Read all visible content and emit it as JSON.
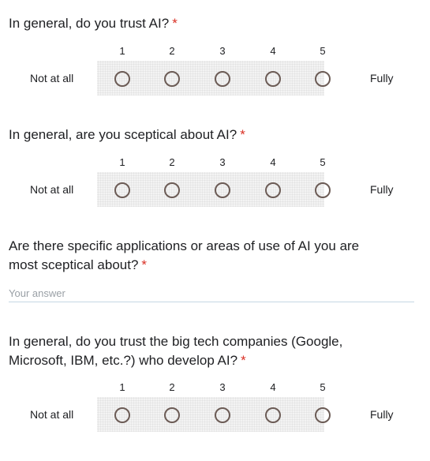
{
  "questions": [
    {
      "title": "In general, do you trust AI?",
      "required": "*",
      "scale": [
        "1",
        "2",
        "3",
        "4",
        "5"
      ],
      "low_label": "Not at all",
      "high_label": "Fully"
    },
    {
      "title": "In general, are you sceptical about AI?",
      "required": "*",
      "scale": [
        "1",
        "2",
        "3",
        "4",
        "5"
      ],
      "low_label": "Not at all",
      "high_label": "Fully"
    },
    {
      "title_line1": "Are there specific applications or areas of use of AI you are",
      "title_line2": "most sceptical about?",
      "required": "*",
      "answer_placeholder": "Your answer",
      "answer_value": ""
    },
    {
      "title_line1": "In general, do you trust the big tech companies (Google,",
      "title_line2": "Microsoft, IBM, etc.?) who develop AI?",
      "required": "*",
      "scale": [
        "1",
        "2",
        "3",
        "4",
        "5"
      ],
      "low_label": "Not at all",
      "high_label": "Fully"
    }
  ],
  "colors": {
    "required": "#d93025",
    "radio_border": "#6b5b55",
    "input_underline": "#c6d8e4"
  }
}
